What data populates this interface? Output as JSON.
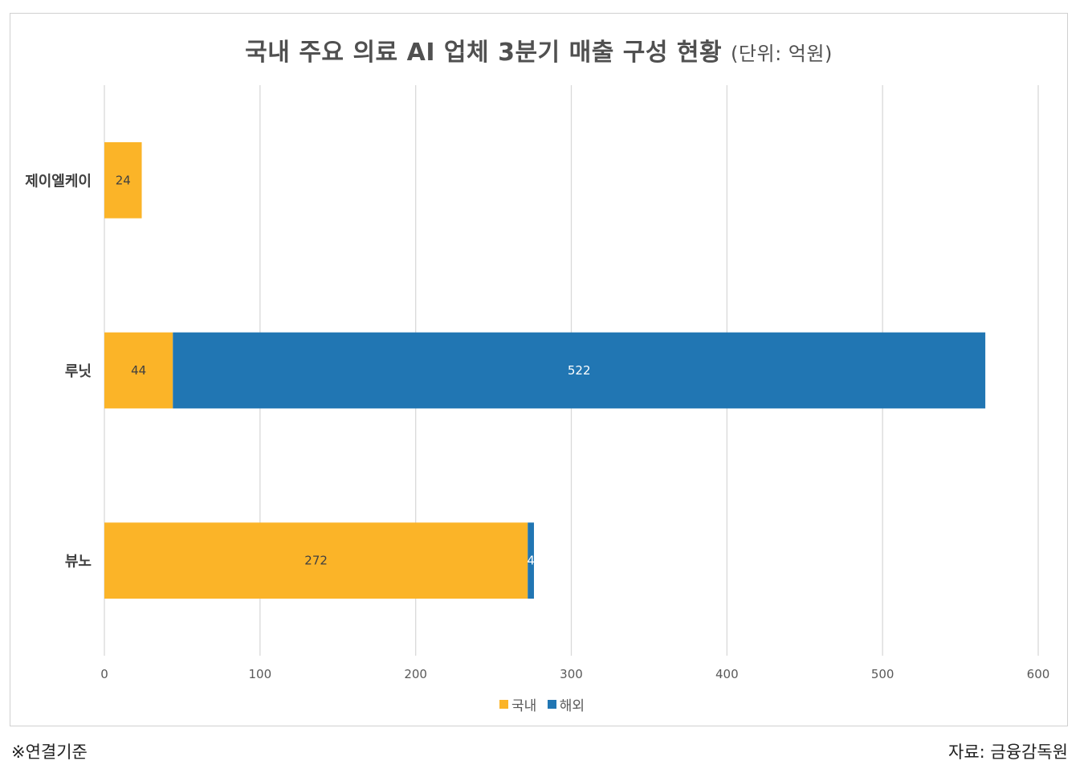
{
  "title": "국내 주요 의료 AI 업체 3분기 매출 구성 현황",
  "title_unit": "(단위: 억원)",
  "footnote": "※연결기준",
  "source": "자료: 금융감독원",
  "colors": {
    "domestic": "#FBB428",
    "overseas": "#2176B3",
    "grid": "#d9d9d9"
  },
  "chart_data": {
    "type": "bar",
    "orientation": "horizontal",
    "stacked": true,
    "categories": [
      "제이엘케이",
      "루닛",
      "뷰노"
    ],
    "series": [
      {
        "name": "국내",
        "values": [
          24,
          44,
          272
        ]
      },
      {
        "name": "해외",
        "values": [
          0,
          522,
          4
        ]
      }
    ],
    "data_labels": [
      [
        "24",
        "44",
        "272"
      ],
      [
        "",
        "522",
        "4"
      ]
    ],
    "xlim": [
      0,
      600
    ],
    "xticks": [
      0,
      100,
      200,
      300,
      400,
      500,
      600
    ],
    "grid": true,
    "legend_position": "bottom"
  }
}
